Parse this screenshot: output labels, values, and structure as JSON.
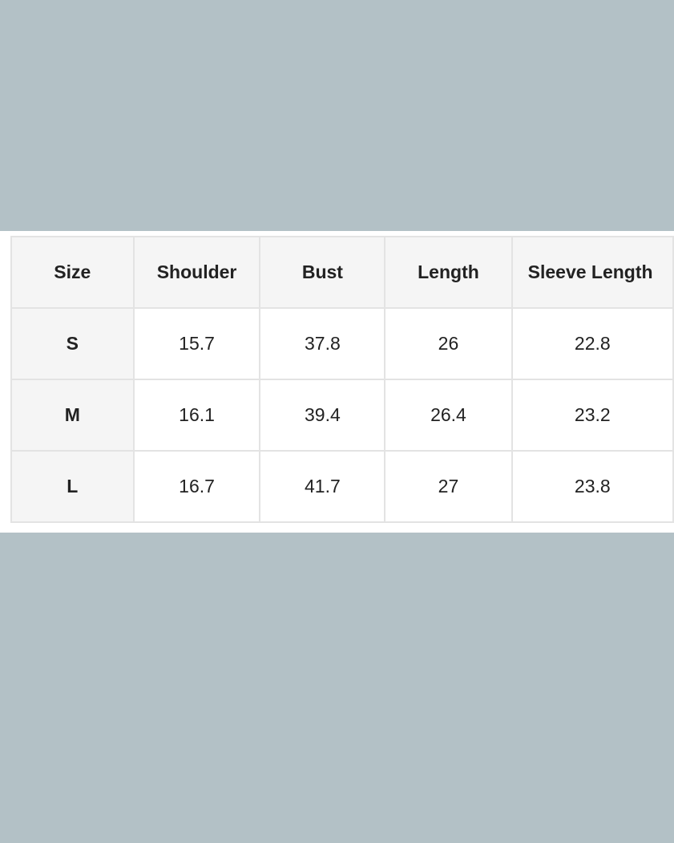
{
  "size_chart": {
    "columns": [
      "Size",
      "Shoulder",
      "Bust",
      "Length",
      "Sleeve Length"
    ],
    "rows": [
      {
        "size": "S",
        "values": [
          "15.7",
          "37.8",
          "26",
          "22.8"
        ]
      },
      {
        "size": "M",
        "values": [
          "16.1",
          "39.4",
          "26.4",
          "23.2"
        ]
      },
      {
        "size": "L",
        "values": [
          "16.7",
          "41.7",
          "27",
          "23.8"
        ]
      }
    ]
  },
  "colors": {
    "background": "#b3c1c6",
    "header_bg": "#f5f5f5",
    "border": "#e3e3e3"
  }
}
